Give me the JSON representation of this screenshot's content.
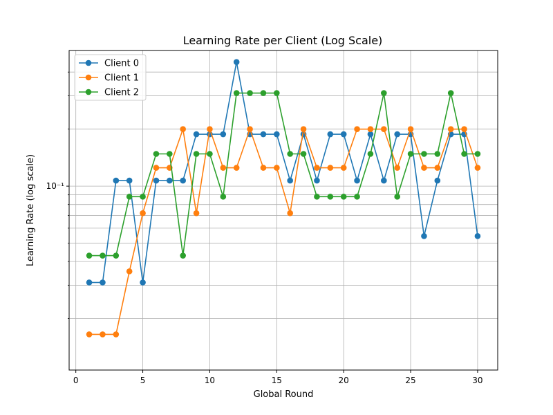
{
  "chart_data": {
    "type": "line",
    "title": "Learning Rate per Client (Log Scale)",
    "xlabel": "Global Round",
    "ylabel": "Learning Rate (log scale)",
    "y_scale": "log",
    "xlim": [
      -0.5,
      31.5
    ],
    "ylim": [
      0.0107,
      0.52
    ],
    "grid": true,
    "legend_position": "top-left",
    "x_ticks": [
      0,
      5,
      10,
      15,
      20,
      25,
      30
    ],
    "y_tick_labels": [
      {
        "value": 0.1,
        "label": "10⁻¹"
      }
    ],
    "y_minor_ticks": [
      0.02,
      0.03,
      0.04,
      0.05,
      0.06,
      0.07,
      0.08,
      0.09,
      0.2,
      0.3,
      0.4
    ],
    "x": [
      1,
      2,
      3,
      4,
      5,
      6,
      7,
      8,
      9,
      10,
      11,
      12,
      13,
      14,
      15,
      16,
      17,
      18,
      19,
      20,
      21,
      22,
      23,
      24,
      25,
      26,
      27,
      28,
      29,
      30
    ],
    "series": [
      {
        "name": "Client 0",
        "color": "#1f77b4",
        "values": [
          0.031,
          0.031,
          0.107,
          0.107,
          0.031,
          0.107,
          0.107,
          0.107,
          0.188,
          0.188,
          0.188,
          0.452,
          0.188,
          0.188,
          0.188,
          0.107,
          0.188,
          0.107,
          0.188,
          0.188,
          0.107,
          0.188,
          0.107,
          0.188,
          0.188,
          0.0545,
          0.107,
          0.188,
          0.188,
          0.0545
        ]
      },
      {
        "name": "Client 1",
        "color": "#ff7f0e",
        "values": [
          0.0165,
          0.0165,
          0.0165,
          0.0355,
          0.072,
          0.125,
          0.125,
          0.2,
          0.072,
          0.2,
          0.125,
          0.125,
          0.2,
          0.125,
          0.125,
          0.072,
          0.2,
          0.125,
          0.125,
          0.125,
          0.2,
          0.2,
          0.2,
          0.125,
          0.2,
          0.125,
          0.125,
          0.2,
          0.2,
          0.125
        ]
      },
      {
        "name": "Client 2",
        "color": "#2ca02c",
        "values": [
          0.043,
          0.043,
          0.043,
          0.088,
          0.088,
          0.148,
          0.148,
          0.043,
          0.148,
          0.148,
          0.088,
          0.31,
          0.31,
          0.31,
          0.31,
          0.148,
          0.148,
          0.088,
          0.088,
          0.088,
          0.088,
          0.148,
          0.31,
          0.088,
          0.148,
          0.148,
          0.148,
          0.31,
          0.148,
          0.148
        ]
      }
    ]
  }
}
